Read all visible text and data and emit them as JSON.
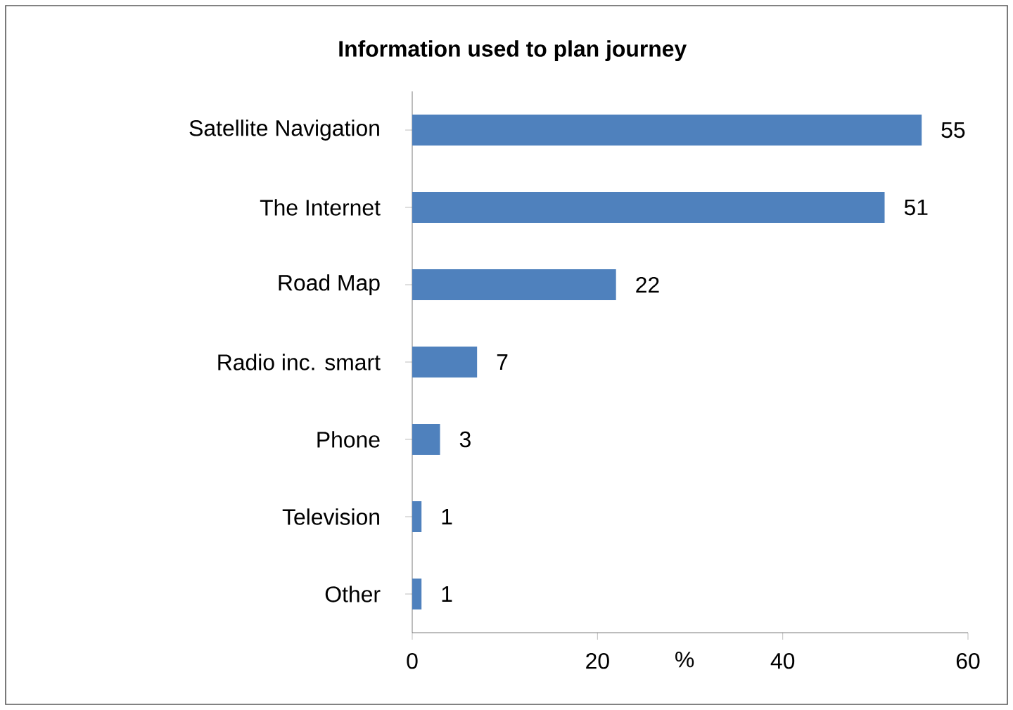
{
  "chart_data": {
    "type": "bar",
    "orientation": "horizontal",
    "title": "Information used to plan journey",
    "xlabel": "%",
    "categories": [
      "Satellite Navigation",
      "The Internet",
      "Road Map",
      "Radio inc. smart",
      "Phone",
      "Television",
      "Other"
    ],
    "values": [
      55,
      51,
      22,
      7,
      3,
      1,
      1
    ],
    "color": "#4f81bd",
    "data_labels": true,
    "xlim": [
      0,
      60
    ],
    "xticks": [
      0,
      20,
      40,
      60
    ],
    "grid": false
  }
}
